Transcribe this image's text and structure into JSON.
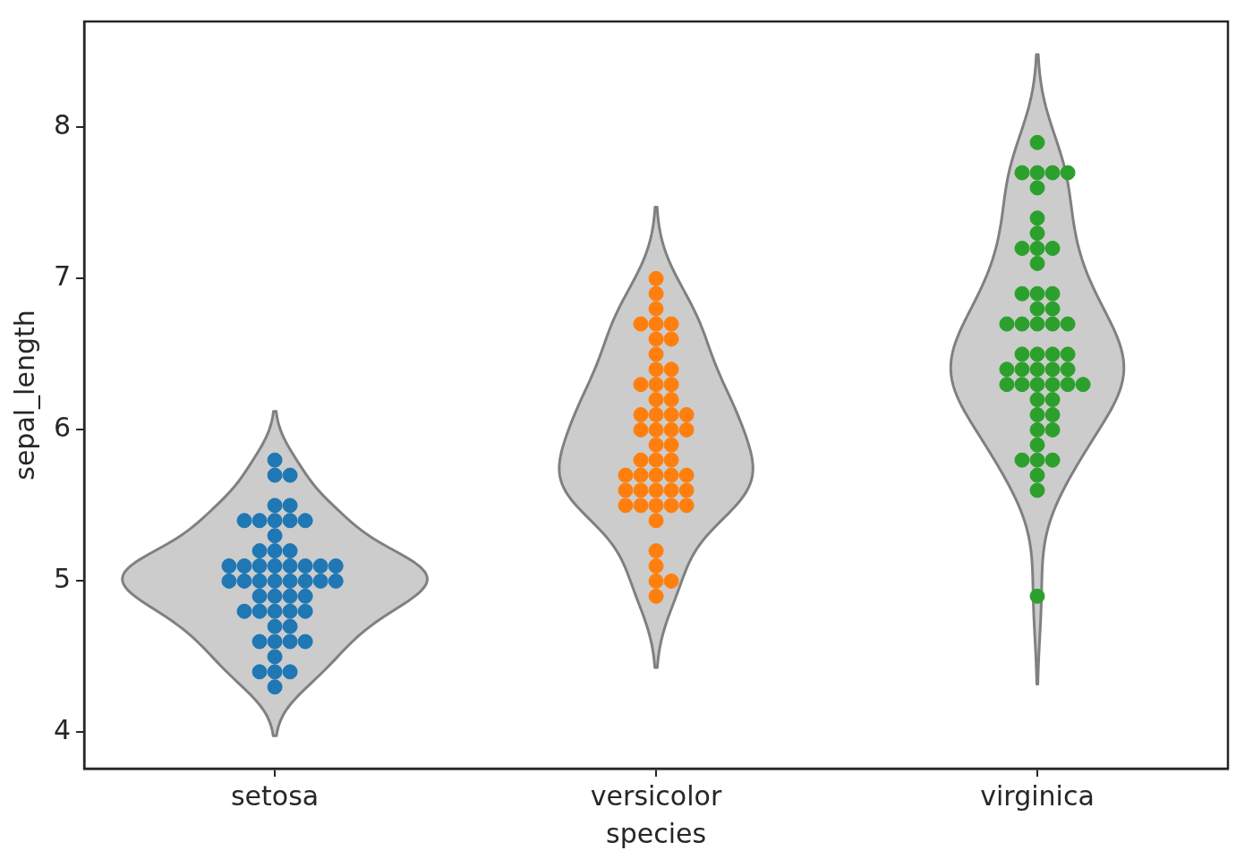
{
  "chart_data": {
    "type": "scatter",
    "xlabel": "species",
    "ylabel": "sepal_length",
    "categories": [
      "setosa",
      "versicolor",
      "virginica"
    ],
    "ylim": [
      3.76,
      8.7
    ],
    "yticks": [
      4,
      5,
      6,
      7,
      8
    ],
    "grid": false,
    "marker": "circle",
    "series": [
      {
        "color": "#1f77b4",
        "x": [
          "setosa",
          "setosa",
          "setosa",
          "setosa",
          "setosa",
          "setosa",
          "setosa",
          "setosa",
          "setosa",
          "setosa",
          "setosa",
          "setosa",
          "setosa",
          "setosa",
          "setosa",
          "setosa",
          "setosa",
          "setosa",
          "setosa",
          "setosa",
          "setosa",
          "setosa",
          "setosa",
          "setosa",
          "setosa",
          "setosa",
          "setosa",
          "setosa",
          "setosa",
          "setosa",
          "setosa",
          "setosa",
          "setosa",
          "setosa",
          "setosa",
          "setosa",
          "setosa",
          "setosa",
          "setosa",
          "setosa",
          "setosa",
          "setosa",
          "setosa",
          "setosa",
          "setosa",
          "setosa",
          "setosa",
          "setosa",
          "setosa",
          "setosa"
        ],
        "values": [
          5.1,
          4.9,
          4.7,
          4.6,
          5.0,
          5.4,
          4.6,
          5.0,
          4.4,
          4.9,
          5.4,
          4.8,
          4.8,
          4.3,
          5.8,
          5.7,
          5.4,
          5.1,
          5.7,
          5.1,
          5.4,
          5.1,
          4.6,
          5.1,
          4.8,
          5.0,
          5.0,
          5.2,
          5.2,
          4.7,
          4.8,
          5.4,
          5.2,
          5.5,
          4.9,
          5.0,
          5.5,
          4.9,
          4.4,
          5.1,
          5.0,
          4.5,
          4.4,
          5.0,
          5.1,
          4.8,
          5.1,
          4.6,
          5.3,
          5.0
        ]
      },
      {
        "color": "#ff7f0e",
        "x": [
          "versicolor",
          "versicolor",
          "versicolor",
          "versicolor",
          "versicolor",
          "versicolor",
          "versicolor",
          "versicolor",
          "versicolor",
          "versicolor",
          "versicolor",
          "versicolor",
          "versicolor",
          "versicolor",
          "versicolor",
          "versicolor",
          "versicolor",
          "versicolor",
          "versicolor",
          "versicolor",
          "versicolor",
          "versicolor",
          "versicolor",
          "versicolor",
          "versicolor",
          "versicolor",
          "versicolor",
          "versicolor",
          "versicolor",
          "versicolor",
          "versicolor",
          "versicolor",
          "versicolor",
          "versicolor",
          "versicolor",
          "versicolor",
          "versicolor",
          "versicolor",
          "versicolor",
          "versicolor",
          "versicolor",
          "versicolor",
          "versicolor",
          "versicolor",
          "versicolor",
          "versicolor",
          "versicolor",
          "versicolor",
          "versicolor",
          "versicolor"
        ],
        "values": [
          7.0,
          6.4,
          6.9,
          5.5,
          6.5,
          5.7,
          6.3,
          4.9,
          6.6,
          5.2,
          5.0,
          5.9,
          6.0,
          6.1,
          5.6,
          6.7,
          5.6,
          5.8,
          6.2,
          5.6,
          5.9,
          6.1,
          6.3,
          6.1,
          6.4,
          6.6,
          6.8,
          6.7,
          6.0,
          5.7,
          5.5,
          5.5,
          5.8,
          6.0,
          5.4,
          6.0,
          6.7,
          6.3,
          5.6,
          5.5,
          5.5,
          6.1,
          5.8,
          5.0,
          5.6,
          5.7,
          5.7,
          6.2,
          5.1,
          5.7
        ]
      },
      {
        "color": "#2ca02c",
        "x": [
          "virginica",
          "virginica",
          "virginica",
          "virginica",
          "virginica",
          "virginica",
          "virginica",
          "virginica",
          "virginica",
          "virginica",
          "virginica",
          "virginica",
          "virginica",
          "virginica",
          "virginica",
          "virginica",
          "virginica",
          "virginica",
          "virginica",
          "virginica",
          "virginica",
          "virginica",
          "virginica",
          "virginica",
          "virginica",
          "virginica",
          "virginica",
          "virginica",
          "virginica",
          "virginica",
          "virginica",
          "virginica",
          "virginica",
          "virginica",
          "virginica",
          "virginica",
          "virginica",
          "virginica",
          "virginica",
          "virginica",
          "virginica",
          "virginica",
          "virginica",
          "virginica",
          "virginica",
          "virginica",
          "virginica",
          "virginica",
          "virginica",
          "virginica"
        ],
        "values": [
          6.3,
          5.8,
          7.1,
          6.3,
          6.5,
          7.6,
          4.9,
          7.3,
          6.7,
          7.2,
          6.5,
          6.4,
          6.8,
          5.7,
          5.8,
          6.4,
          6.5,
          7.7,
          7.7,
          6.0,
          6.9,
          5.6,
          7.7,
          6.3,
          6.7,
          7.2,
          6.2,
          6.1,
          6.4,
          7.2,
          7.4,
          7.9,
          6.4,
          6.3,
          6.1,
          7.7,
          6.3,
          6.4,
          6.0,
          6.9,
          6.7,
          6.9,
          5.8,
          6.8,
          6.7,
          6.7,
          6.3,
          6.5,
          6.2,
          5.9
        ]
      }
    ]
  }
}
